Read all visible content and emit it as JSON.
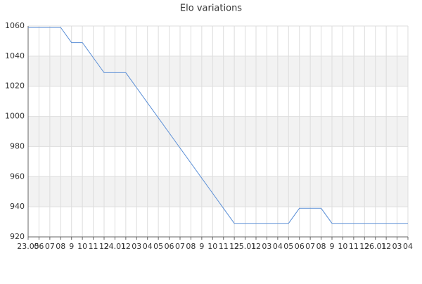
{
  "chart_data": {
    "type": "line",
    "title": "Elo variations",
    "categories": [
      "23.05",
      "06",
      "07",
      "08",
      "9",
      "10",
      "11",
      "12",
      "24.01",
      "12",
      "03",
      "04",
      "05",
      "06",
      "07",
      "08",
      "9",
      "10",
      "11",
      "12",
      "25.01",
      "12",
      "03",
      "04",
      "05",
      "06",
      "07",
      "08",
      "9",
      "10",
      "11",
      "12",
      "26.01",
      "12",
      "03",
      "04"
    ],
    "series": [
      {
        "name": "Elo",
        "color": "#5b8fd6",
        "values": [
          1059,
          1059,
          1059,
          1059,
          1049,
          1049,
          1039,
          1029,
          1029,
          1029,
          1019,
          1009,
          999,
          989,
          979,
          969,
          959,
          949,
          939,
          929,
          929,
          929,
          929,
          929,
          929,
          939,
          939,
          939,
          929,
          929,
          929,
          929,
          929,
          929,
          929,
          929
        ]
      }
    ],
    "ylim": [
      920,
      1060
    ],
    "yticks": [
      920,
      940,
      960,
      980,
      1000,
      1020,
      1040,
      1060
    ],
    "grid": true
  }
}
